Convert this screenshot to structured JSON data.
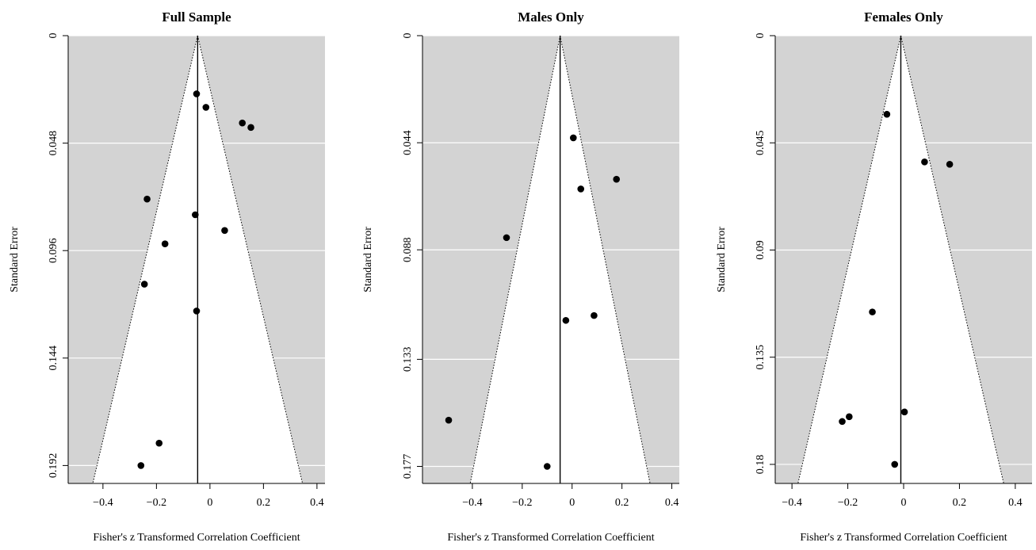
{
  "chart_data": [
    {
      "type": "scatter",
      "subtype": "funnel",
      "title": "Full Sample",
      "xlabel": "Fisher's z Transformed Correlation Coefficient",
      "ylabel": "Standard Error",
      "xlim": [
        -0.53,
        0.43
      ],
      "ylim": [
        0.2,
        0
      ],
      "x_ticks": [
        -0.4,
        -0.2,
        0,
        0.2,
        0.4
      ],
      "x_tick_labels": [
        "−0.4",
        "−0.2",
        "0",
        "0.2",
        "0.4"
      ],
      "y_ticks": [
        0,
        0.048,
        0.096,
        0.144,
        0.192
      ],
      "y_tick_labels": [
        "0",
        "0.048",
        "0.096",
        "0.144",
        "0.192"
      ],
      "center": -0.046,
      "background_color": "#d3d3d3",
      "grid": true,
      "points": [
        {
          "x": -0.05,
          "y": 0.026
        },
        {
          "x": -0.015,
          "y": 0.032
        },
        {
          "x": 0.121,
          "y": 0.039
        },
        {
          "x": 0.153,
          "y": 0.041
        },
        {
          "x": -0.235,
          "y": 0.073
        },
        {
          "x": -0.055,
          "y": 0.08
        },
        {
          "x": 0.055,
          "y": 0.087
        },
        {
          "x": -0.168,
          "y": 0.093
        },
        {
          "x": -0.245,
          "y": 0.111
        },
        {
          "x": -0.05,
          "y": 0.123
        },
        {
          "x": -0.19,
          "y": 0.182
        },
        {
          "x": -0.258,
          "y": 0.192
        }
      ]
    },
    {
      "type": "scatter",
      "subtype": "funnel",
      "title": "Males Only",
      "xlabel": "Fisher's z Transformed Correlation Coefficient",
      "ylabel": "Standard Error",
      "xlim": [
        -0.6,
        0.43
      ],
      "ylim": [
        0.184,
        0
      ],
      "x_ticks": [
        -0.4,
        -0.2,
        0,
        0.2,
        0.4
      ],
      "x_tick_labels": [
        "−0.4",
        "−0.2",
        "0",
        "0.2",
        "0.4"
      ],
      "y_ticks": [
        0,
        0.044,
        0.088,
        0.133,
        0.177
      ],
      "y_tick_labels": [
        "0",
        "0.044",
        "0.088",
        "0.133",
        "0.177"
      ],
      "center": -0.048,
      "background_color": "#d3d3d3",
      "grid": true,
      "points": [
        {
          "x": 0.005,
          "y": 0.042
        },
        {
          "x": 0.178,
          "y": 0.059
        },
        {
          "x": 0.035,
          "y": 0.063
        },
        {
          "x": -0.263,
          "y": 0.083
        },
        {
          "x": 0.088,
          "y": 0.115
        },
        {
          "x": -0.025,
          "y": 0.117
        },
        {
          "x": -0.495,
          "y": 0.158
        },
        {
          "x": -0.1,
          "y": 0.177
        }
      ]
    },
    {
      "type": "scatter",
      "subtype": "funnel",
      "title": "Females Only",
      "xlabel": "Fisher's z Transformed Correlation Coefficient",
      "ylabel": "Standard Error",
      "xlim": [
        -0.46,
        0.46
      ],
      "ylim": [
        0.188,
        0
      ],
      "x_ticks": [
        -0.4,
        -0.2,
        0,
        0.2,
        0.4
      ],
      "x_tick_labels": [
        "−0.4",
        "−0.2",
        "0",
        "0.2",
        "0.4"
      ],
      "y_ticks": [
        0,
        0.045,
        0.09,
        0.135,
        0.18
      ],
      "y_tick_labels": [
        "0",
        "0.045",
        "0.09",
        "0.135",
        "0.18"
      ],
      "center": -0.01,
      "background_color": "#d3d3d3",
      "grid": true,
      "points": [
        {
          "x": -0.06,
          "y": 0.033
        },
        {
          "x": 0.075,
          "y": 0.053
        },
        {
          "x": 0.165,
          "y": 0.054
        },
        {
          "x": -0.112,
          "y": 0.116
        },
        {
          "x": 0.003,
          "y": 0.158
        },
        {
          "x": -0.195,
          "y": 0.16
        },
        {
          "x": -0.22,
          "y": 0.162
        },
        {
          "x": -0.032,
          "y": 0.18
        }
      ]
    }
  ]
}
